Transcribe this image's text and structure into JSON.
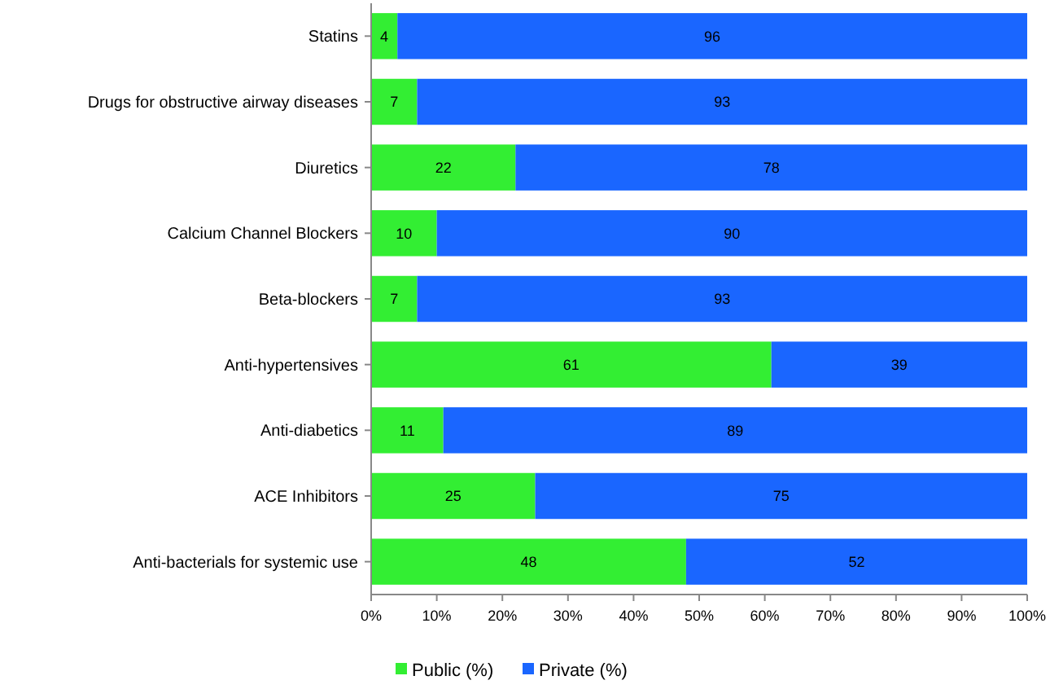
{
  "chart_data": {
    "type": "bar",
    "orientation": "horizontal",
    "stacked": true,
    "categories": [
      "Statins",
      "Drugs for obstructive airway diseases",
      "Diuretics",
      "Calcium Channel Blockers",
      "Beta-blockers",
      "Anti-hypertensives",
      "Anti-diabetics",
      "ACE Inhibitors",
      "Anti-bacterials for systemic use"
    ],
    "series": [
      {
        "name": "Public (%)",
        "color": "#33ee33",
        "values": [
          4,
          7,
          22,
          10,
          7,
          61,
          11,
          25,
          48
        ]
      },
      {
        "name": "Private (%)",
        "color": "#1a66ff",
        "values": [
          96,
          93,
          78,
          90,
          93,
          39,
          89,
          75,
          52
        ]
      }
    ],
    "xlim": [
      0,
      100
    ],
    "xticks": [
      {
        "value": 0,
        "label": "0%"
      },
      {
        "value": 10,
        "label": "10%"
      },
      {
        "value": 20,
        "label": "20%"
      },
      {
        "value": 30,
        "label": "30%"
      },
      {
        "value": 40,
        "label": "40%"
      },
      {
        "value": 50,
        "label": "50%"
      },
      {
        "value": 60,
        "label": "60%"
      },
      {
        "value": 70,
        "label": "70%"
      },
      {
        "value": 80,
        "label": "80%"
      },
      {
        "value": 90,
        "label": "90%"
      },
      {
        "value": 100,
        "label": "100%"
      }
    ],
    "data_labels": true,
    "legend": "bottom",
    "grid": false
  }
}
